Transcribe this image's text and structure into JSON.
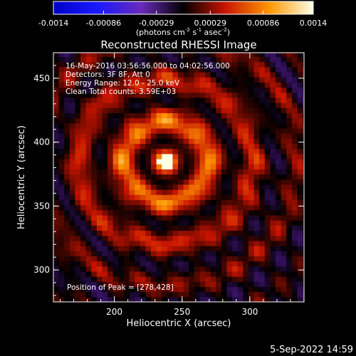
{
  "chart_data": {
    "type": "heatmap",
    "title": "Reconstructed RHESSI Image",
    "xlabel": "Heliocentric X (arcsec)",
    "ylabel": "Heliocentric Y (arcsec)",
    "xlim": [
      155,
      340
    ],
    "ylim": [
      275,
      470
    ],
    "x_ticks": [
      200,
      250,
      300
    ],
    "y_ticks": [
      300,
      350,
      400,
      450
    ],
    "colorbar": {
      "ticks": [
        "-0.0014",
        "-0.00086",
        "-0.00029",
        "0.00029",
        "0.00086",
        "0.0014"
      ],
      "range": [
        -0.0014,
        0.0014
      ],
      "unit_main": "(photons cm",
      "unit_exp1": "-2",
      "unit_mid": " s",
      "unit_exp2": "-1",
      "unit_mid2": " asec",
      "unit_exp3": "-2",
      "unit_end": ")"
    },
    "annotations": {
      "time": "16-May-2016 03:56:56.000 to 04:02:56.000",
      "detectors": "Detectors: 3F 8F, Att 0",
      "energy": "Energy Range: 12.0 - 25.0 keV",
      "method": "Clean     Total counts: 3.59E+03",
      "peak": "Position of Peak = [278,428]"
    },
    "peak": [
      278,
      428
    ],
    "source_center": [
      238,
      385
    ]
  },
  "footer": {
    "date": "5-Sep-2022 14:59"
  }
}
